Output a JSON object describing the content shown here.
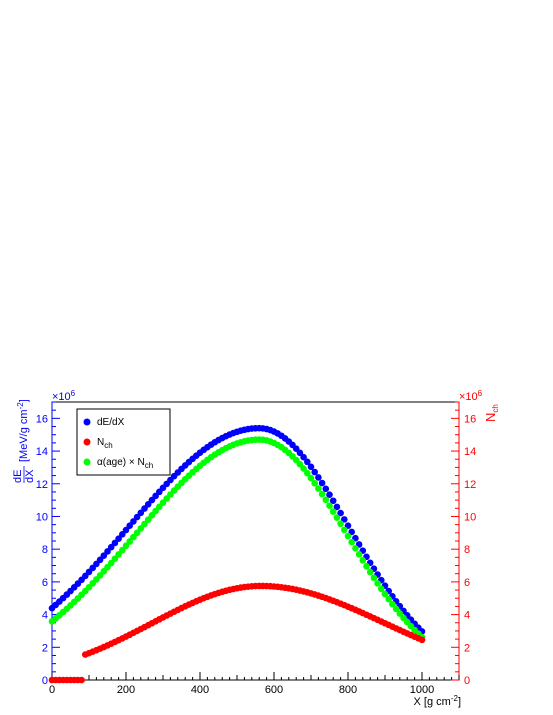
{
  "chart_data": {
    "type": "scatter",
    "title": "",
    "xlabel": "X [g cm",
    "xlabel_exp": "-2",
    "xlabel_close": "]",
    "ylabel_num": "dE",
    "ylabel_den": "dX",
    "ylabel_unit": "[MeV/g cm",
    "ylabel_unit_exp": "-2",
    "ylabel_unit_close": "]",
    "y2label": "N",
    "y2label_sub": "ch",
    "y_multiplier": "×10",
    "y_multiplier_exp": "6",
    "y2_multiplier": "×10",
    "y2_multiplier_exp": "6",
    "xlim": [
      0,
      1100
    ],
    "ylim": [
      0,
      17
    ],
    "y2lim": [
      0,
      17
    ],
    "x_ticks": [
      0,
      200,
      400,
      600,
      800,
      1000
    ],
    "y_ticks": [
      0,
      2,
      4,
      6,
      8,
      10,
      12,
      14,
      16
    ],
    "y2_ticks": [
      0,
      2,
      4,
      6,
      8,
      10,
      12,
      14,
      16
    ],
    "legend_position": "top-left",
    "series": [
      {
        "name": "dE/dX",
        "color": "#0000ff",
        "axis": "left",
        "xmax": 560,
        "peak": 15.4,
        "x0": 0,
        "xend": 1005,
        "a": 4e-06,
        "b": 8.5e-06
      },
      {
        "name": "N",
        "name_sub": "ch",
        "color": "#ff0000",
        "axis": "right",
        "xmax": 565,
        "peak": 5.75,
        "x0": 85,
        "xend": 1005,
        "a": 5.8e-06,
        "b": 4.5e-06
      },
      {
        "name": "α(age) × N",
        "name_sub": "ch",
        "color": "#00ff00",
        "axis": "left",
        "xmax": 560,
        "peak": 14.7,
        "x0": 0,
        "xend": 1005,
        "a": 4.5e-06,
        "b": 8.9e-06
      }
    ]
  }
}
